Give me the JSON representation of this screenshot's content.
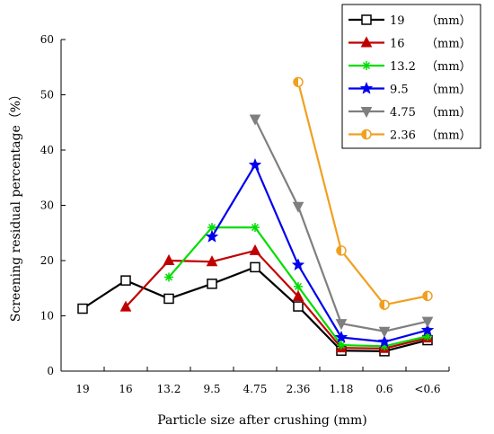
{
  "chart_data": {
    "type": "line",
    "title": "",
    "xlabel": "Particle size after crushing (mm)",
    "ylabel": "Screening residual percentage（%）",
    "ylim": [
      0,
      60
    ],
    "yticks": [
      "0",
      "10",
      "20",
      "30",
      "40",
      "50",
      "60"
    ],
    "categories": [
      "19",
      "16",
      "13.2",
      "9.5",
      "4.75",
      "2.36",
      "1.18",
      "0.6",
      "<0.6"
    ],
    "grid": false,
    "legend_position": "top-right",
    "series": [
      {
        "name": "19",
        "unit": "（mm）",
        "color": "#000000",
        "marker": "square",
        "values": [
          11.3,
          16.4,
          13.1,
          15.8,
          18.8,
          11.7,
          3.7,
          3.6,
          5.6
        ]
      },
      {
        "name": "16",
        "unit": "（mm）",
        "color": "#c00000",
        "marker": "triangle",
        "values": [
          null,
          11.6,
          20.0,
          19.8,
          21.8,
          13.5,
          4.2,
          4.1,
          6.0
        ]
      },
      {
        "name": "13.2",
        "unit": "（mm）",
        "color": "#00dd00",
        "marker": "asterisk",
        "values": [
          null,
          null,
          17.0,
          26.0,
          26.0,
          15.3,
          4.7,
          4.5,
          6.3
        ]
      },
      {
        "name": "9.5",
        "unit": "（mm）",
        "color": "#0000ee",
        "marker": "star",
        "values": [
          null,
          null,
          null,
          24.3,
          37.3,
          19.2,
          6.1,
          5.3,
          7.4
        ]
      },
      {
        "name": "4.75",
        "unit": "（mm）",
        "color": "#7f7f7f",
        "marker": "triangle-down",
        "values": [
          null,
          null,
          null,
          null,
          45.6,
          29.8,
          8.6,
          7.2,
          9.0
        ]
      },
      {
        "name": "2.36",
        "unit": "（mm）",
        "color": "#f0a020",
        "marker": "circle-half",
        "values": [
          null,
          null,
          null,
          null,
          null,
          52.3,
          21.8,
          12.0,
          13.6
        ]
      }
    ]
  }
}
